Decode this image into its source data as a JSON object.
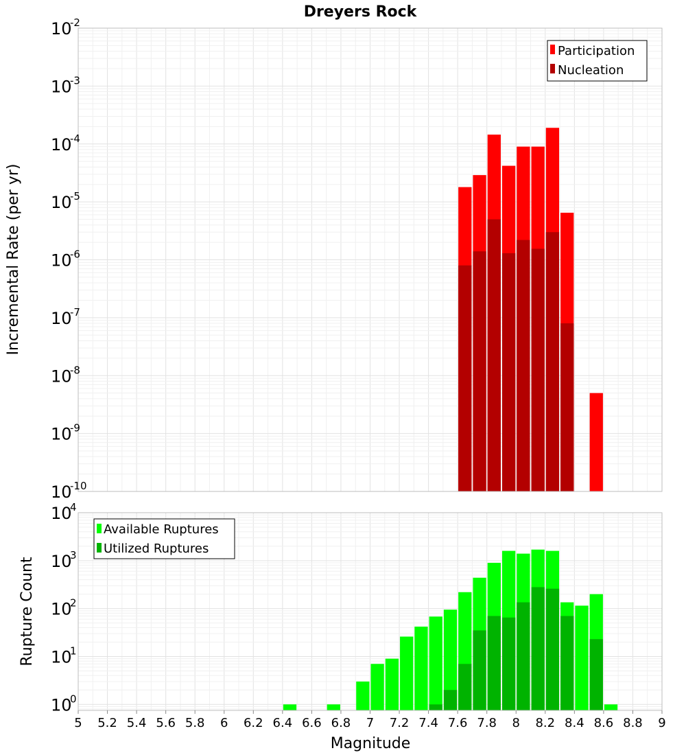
{
  "chart_data": [
    {
      "type": "bar",
      "title": "Dreyers Rock",
      "ylabel": "Incremental Rate (per yr)",
      "xlabel": "",
      "yscale": "log",
      "ylim": [
        1e-10,
        0.01
      ],
      "xlim": [
        5,
        9
      ],
      "bin_width": 0.1,
      "legend_position": "top-right",
      "y_tick_exponents": [
        "-10",
        "-9",
        "-8",
        "-7",
        "-6",
        "-5",
        "-4",
        "-3",
        "-2"
      ],
      "series": [
        {
          "name": "Participation",
          "color": "#ff0000",
          "x": [
            7.65,
            7.75,
            7.85,
            7.95,
            8.05,
            8.15,
            8.25,
            8.35,
            8.55
          ],
          "values": [
            1.8e-05,
            2.9e-05,
            0.000145,
            4.2e-05,
            9e-05,
            9e-05,
            0.00019,
            6.5e-06,
            5e-09
          ]
        },
        {
          "name": "Nucleation",
          "color": "#b30000",
          "x": [
            7.65,
            7.75,
            7.85,
            7.95,
            8.05,
            8.15,
            8.25,
            8.35
          ],
          "values": [
            8e-07,
            1.4e-06,
            5e-06,
            1.3e-06,
            2.2e-06,
            1.55e-06,
            3e-06,
            8e-08
          ]
        }
      ]
    },
    {
      "type": "bar",
      "title": "",
      "ylabel": "Rupture Count",
      "xlabel": "Magnitude",
      "yscale": "log",
      "ylim": [
        0.75,
        10000
      ],
      "xlim": [
        5,
        9
      ],
      "bin_width": 0.1,
      "legend_position": "top-left",
      "y_tick_exponents": [
        "0",
        "1",
        "2",
        "3",
        "4"
      ],
      "x_ticks": [
        "5",
        "5.2",
        "5.4",
        "5.6",
        "5.8",
        "6",
        "6.2",
        "6.4",
        "6.6",
        "6.8",
        "7",
        "7.2",
        "7.4",
        "7.6",
        "7.8",
        "8",
        "8.2",
        "8.4",
        "8.6",
        "8.8",
        "9"
      ],
      "series": [
        {
          "name": "Available Ruptures",
          "color": "#00ff00",
          "x": [
            6.45,
            6.75,
            6.95,
            7.05,
            7.15,
            7.25,
            7.35,
            7.45,
            7.55,
            7.65,
            7.75,
            7.85,
            7.95,
            8.05,
            8.15,
            8.25,
            8.35,
            8.45,
            8.55,
            8.65
          ],
          "values": [
            1,
            1,
            3,
            7,
            9,
            26,
            42,
            68,
            95,
            220,
            440,
            900,
            1600,
            1400,
            1700,
            1600,
            135,
            115,
            200,
            1
          ]
        },
        {
          "name": "Utilized Ruptures",
          "color": "#00b300",
          "x": [
            7.45,
            7.55,
            7.65,
            7.75,
            7.85,
            7.95,
            8.05,
            8.15,
            8.25,
            8.35,
            8.55
          ],
          "values": [
            1,
            2,
            7,
            35,
            70,
            65,
            135,
            280,
            260,
            70,
            23
          ]
        }
      ]
    }
  ]
}
